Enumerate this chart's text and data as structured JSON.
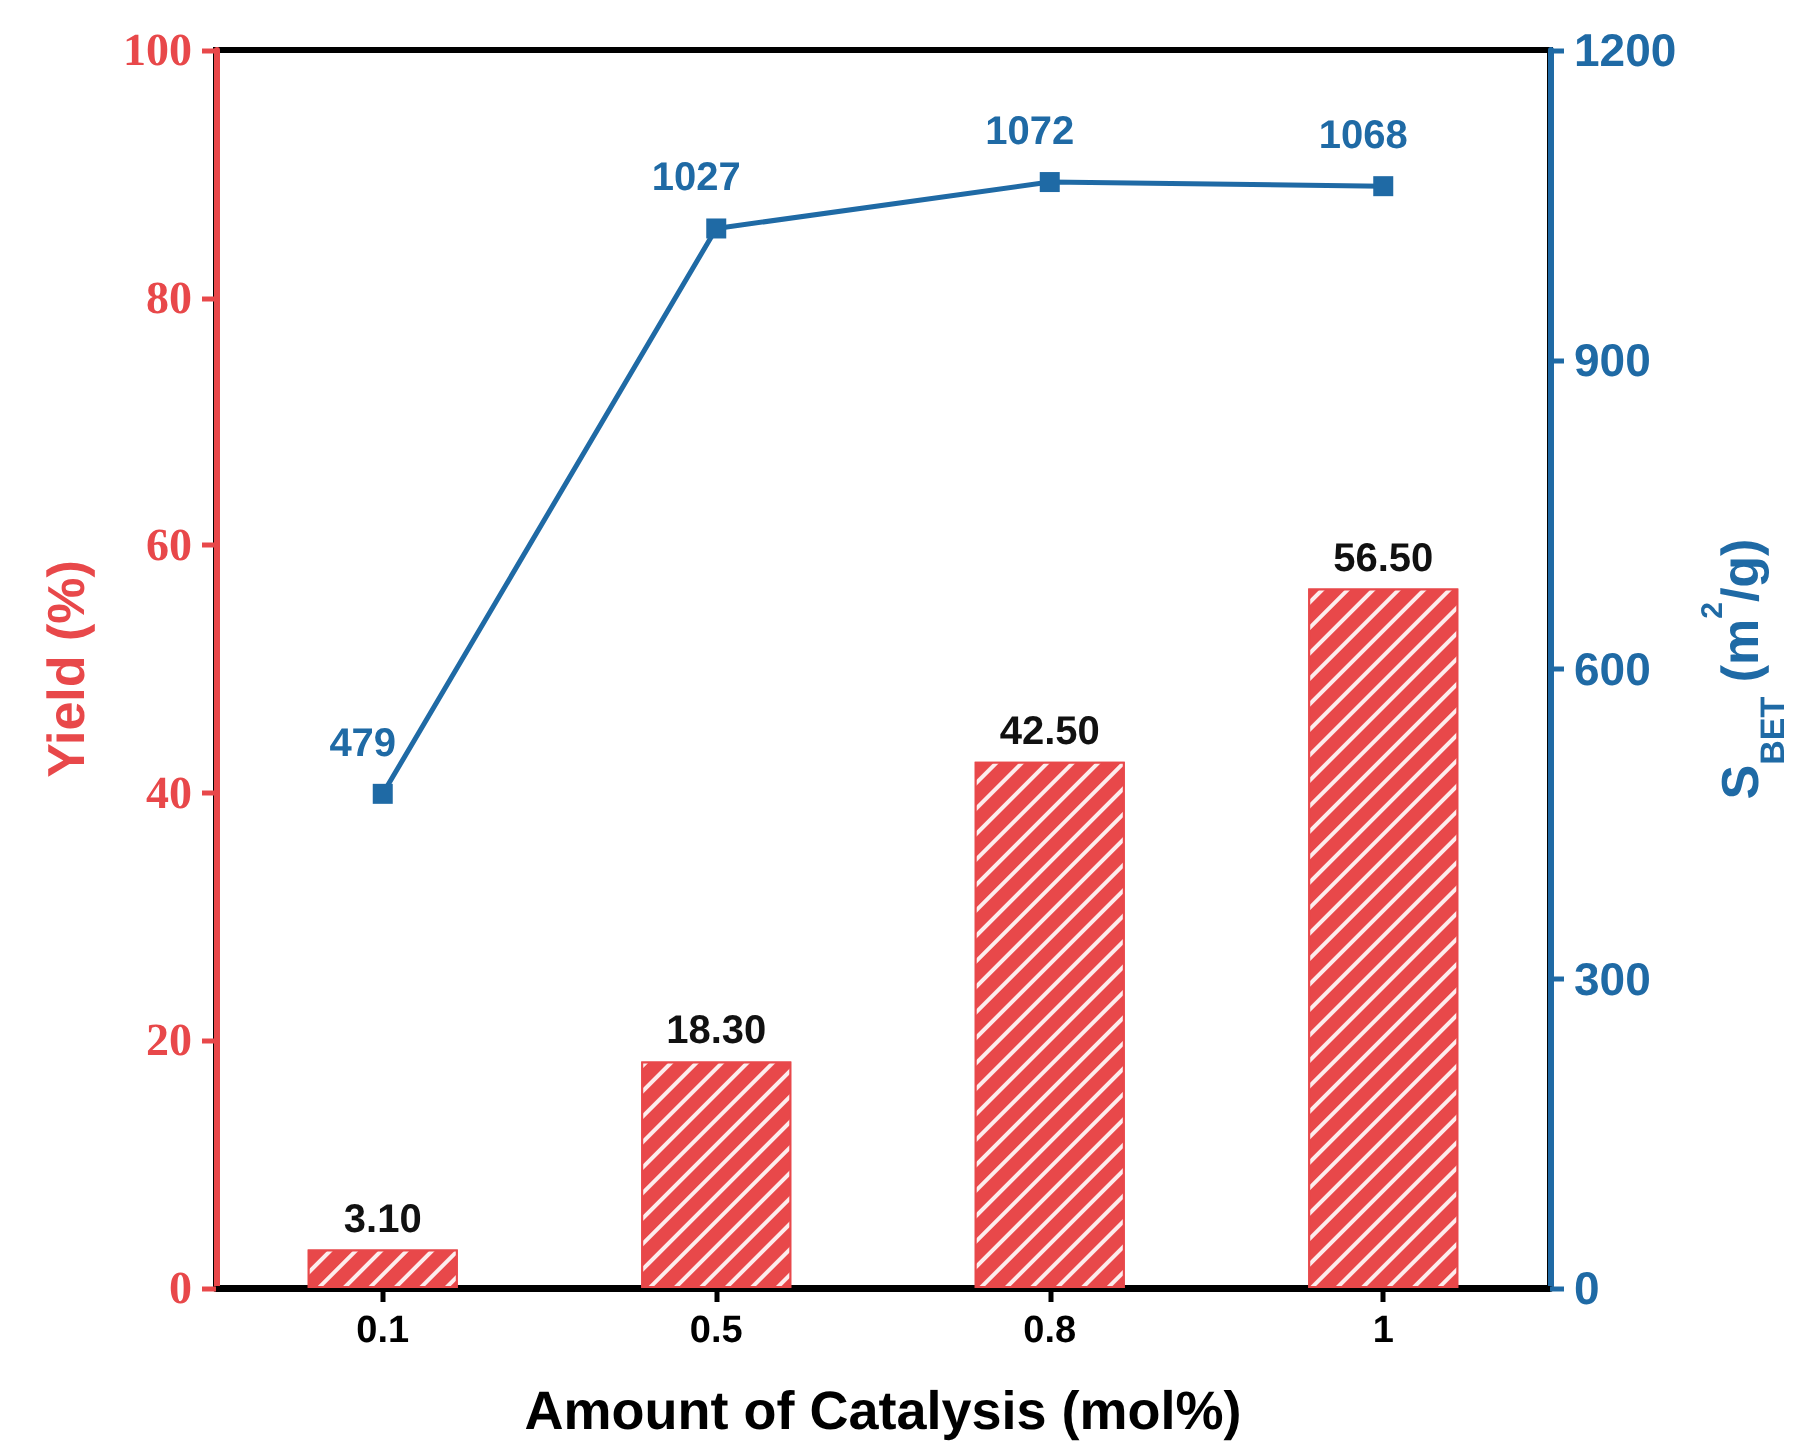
{
  "chart_data": {
    "type": "bar",
    "xlabel": "Amount of Catalysis (mol%)",
    "ylabel": "Yield (%)",
    "y2label": "S$_{BET}$ (m$^{2}$/g)",
    "categories": [
      "0.1",
      "0.5",
      "0.8",
      "1"
    ],
    "series": [
      {
        "color": "#e8484a",
        "values": [
          3.1,
          18.3,
          42.5,
          56.5
        ],
        "value_labels": [
          "3.10",
          "18.30",
          "42.50",
          "56.50"
        ]
      },
      {
        "type": "line",
        "axis": "y2",
        "color": "#1f6aa5",
        "values": [
          479,
          1027,
          1072,
          1068
        ],
        "value_labels": [
          "479",
          "1027",
          "1072",
          "1068"
        ]
      }
    ],
    "ylim": [
      0,
      100
    ],
    "yticks": [
      0,
      20,
      40,
      60,
      80,
      100
    ],
    "y2lim": [
      0,
      1200
    ],
    "y2ticks": [
      0,
      300,
      600,
      900,
      1200
    ],
    "marker": "square",
    "line_style": "solid",
    "grid": false
  }
}
